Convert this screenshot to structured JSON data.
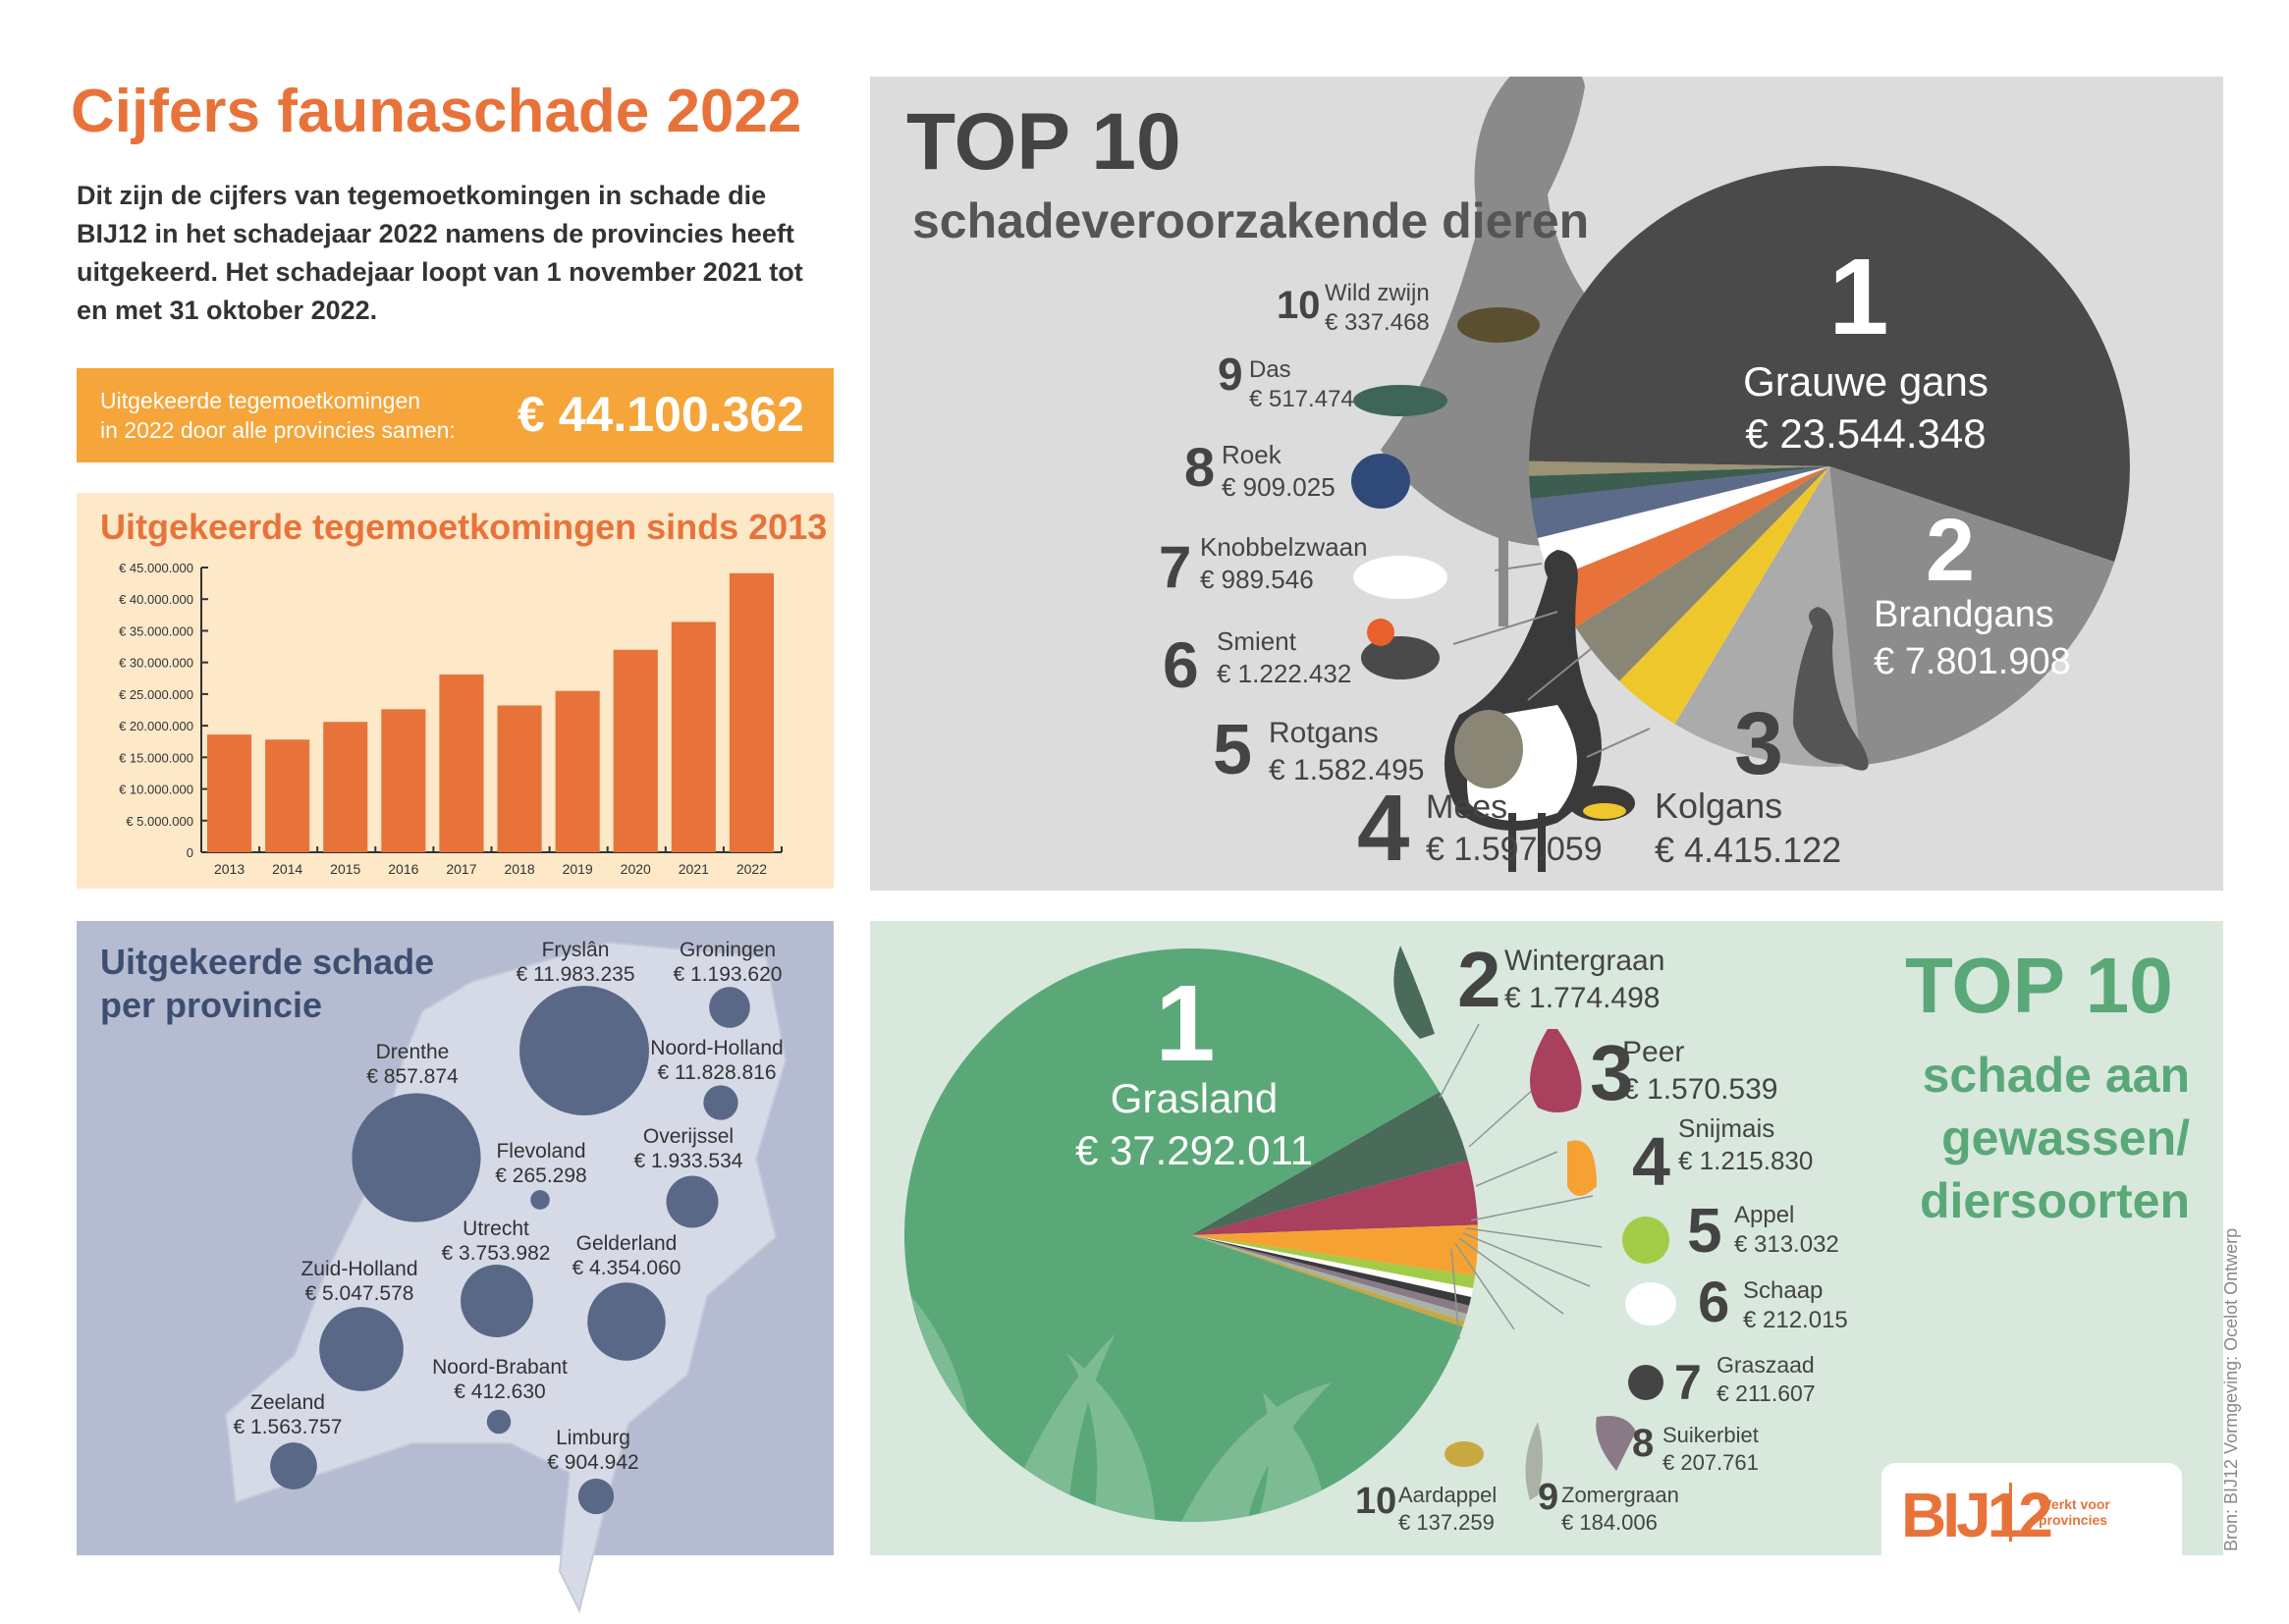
{
  "title": "Cijfers faunaschade 2022",
  "intro": "Dit zijn de cijfers van tegemoetkomingen in schade die BIJ12 in het schadejaar 2022 namens de provincies heeft uitgekeerd. Het schadejaar loopt van 1 november 2021 tot en met 31 oktober 2022.",
  "total": {
    "label_line1": "Uitgekeerde tegemoetkomingen",
    "label_line2": "in 2022 door alle provincies samen:",
    "value": "€ 44.100.362"
  },
  "colors": {
    "orange": "#e8733a",
    "amber": "#f5a53a",
    "navy": "#5a6888",
    "green": "#5aa878"
  },
  "chart_data": [
    {
      "type": "bar",
      "title": "Uitgekeerde tegemoetkomingen sinds 2013",
      "categories": [
        "2013",
        "2014",
        "2015",
        "2016",
        "2017",
        "2018",
        "2019",
        "2020",
        "2021",
        "2022"
      ],
      "values": [
        18600000,
        17800000,
        20600000,
        22600000,
        28100000,
        23200000,
        25500000,
        32000000,
        36400000,
        44100000
      ],
      "ylim": [
        0,
        45000000
      ],
      "yticks": [
        "0",
        "€ 5.000.000",
        "€ 10.000.000",
        "€ 15.000.000",
        "€ 20.000.000",
        "€ 25.000.000",
        "€ 30.000.000",
        "€ 35.000.000",
        "€ 40.000.000",
        "€ 45.000.000"
      ],
      "color": "#e8733a",
      "grid": false
    },
    {
      "type": "pie",
      "title": "TOP 10",
      "subtitle": "schadeveroorzakende dieren",
      "slices": [
        {
          "rank": "1",
          "name": "Grauwe gans",
          "label": "€ 23.544.348",
          "value": 23544348,
          "color": "#4a4a4a"
        },
        {
          "rank": "2",
          "name": "Brandgans",
          "label": "€ 7.801.908",
          "value": 7801908,
          "color": "#8c8c8c"
        },
        {
          "rank": "3",
          "name": "Kolgans",
          "label": "€ 4.415.122",
          "value": 4415122,
          "color": "#ababab"
        },
        {
          "rank": "4",
          "name": "Mees",
          "label": "€ 1.597.059",
          "value": 1597059,
          "color": "#eec72c"
        },
        {
          "rank": "5",
          "name": "Rotgans",
          "label": "€ 1.582.495",
          "value": 1582495,
          "color": "#8a8676"
        },
        {
          "rank": "6",
          "name": "Smient",
          "label": "€ 1.222.432",
          "value": 1222432,
          "color": "#e8733a"
        },
        {
          "rank": "7",
          "name": "Knobbelzwaan",
          "label": "€ 989.546",
          "value": 989546,
          "color": "#ffffff"
        },
        {
          "rank": "8",
          "name": "Roek",
          "label": "€ 909.025",
          "value": 909025,
          "color": "#5d6b8a"
        },
        {
          "rank": "9",
          "name": "Das",
          "label": "€ 517.474",
          "value": 517474,
          "color": "#3d5d50"
        },
        {
          "rank": "10",
          "name": "Wild zwijn",
          "label": "€ 337.468",
          "value": 337468,
          "color": "#9c9274"
        }
      ]
    },
    {
      "type": "pie",
      "title": "TOP 10",
      "subtitle_lines": [
        "schade aan",
        "gewassen/",
        "diersoorten"
      ],
      "slices": [
        {
          "rank": "1",
          "name": "Grasland",
          "label": "€ 37.292.011",
          "value": 37292011,
          "color": "#5aa878"
        },
        {
          "rank": "2",
          "name": "Wintergraan",
          "label": "€ 1.774.498",
          "value": 1774498,
          "color": "#4a6a5a"
        },
        {
          "rank": "3",
          "name": "Peer",
          "label": "€ 1.570.539",
          "value": 1570539,
          "color": "#a8405e"
        },
        {
          "rank": "4",
          "name": "Snijmais",
          "label": "€ 1.215.830",
          "value": 1215830,
          "color": "#f5a233"
        },
        {
          "rank": "5",
          "name": "Appel",
          "label": "€ 313.032",
          "value": 313032,
          "color": "#a2cc48"
        },
        {
          "rank": "6",
          "name": "Schaap",
          "label": "€ 212.015",
          "value": 212015,
          "color": "#ffffff"
        },
        {
          "rank": "7",
          "name": "Graszaad",
          "label": "€ 211.607",
          "value": 211607,
          "color": "#3a3a3a"
        },
        {
          "rank": "8",
          "name": "Suikerbiet",
          "label": "€ 207.761",
          "value": 207761,
          "color": "#8a7a88"
        },
        {
          "rank": "9",
          "name": "Zomergraan",
          "label": "€ 184.006",
          "value": 184006,
          "color": "#aab2a6"
        },
        {
          "rank": "10",
          "name": "Aardappel",
          "label": "€ 137.259",
          "value": 137259,
          "color": "#c8a840"
        }
      ]
    }
  ],
  "provinces": {
    "title_line1": "Uitgekeerde schade",
    "title_line2": "per provincie",
    "items": [
      {
        "name": "Fryslân",
        "label": "€ 11.983.235",
        "value": 11983235
      },
      {
        "name": "Groningen",
        "label": "€ 1.193.620",
        "value": 1193620
      },
      {
        "name": "Drenthe",
        "label": "€ 857.874",
        "value": 857874
      },
      {
        "name": "Noord-Holland",
        "label": "€ 11.828.816",
        "value": 11828816
      },
      {
        "name": "Flevoland",
        "label": "€ 265.298",
        "value": 265298
      },
      {
        "name": "Overijssel",
        "label": "€ 1.933.534",
        "value": 1933534
      },
      {
        "name": "Utrecht",
        "label": "€ 3.753.982",
        "value": 3753982
      },
      {
        "name": "Gelderland",
        "label": "€ 4.354.060",
        "value": 4354060
      },
      {
        "name": "Zuid-Holland",
        "label": "€ 5.047.578",
        "value": 5047578
      },
      {
        "name": "Noord-Brabant",
        "label": "€ 412.630",
        "value": 412630
      },
      {
        "name": "Zeeland",
        "label": "€ 1.563.757",
        "value": 1563757
      },
      {
        "name": "Limburg",
        "label": "€ 904.942",
        "value": 904942
      }
    ]
  },
  "logo": {
    "text": "BIJ12",
    "tagline": "Werkt voor provincies"
  },
  "credits": "Bron: BIJ12    Vormgeving: Ocelot Ontwerp"
}
